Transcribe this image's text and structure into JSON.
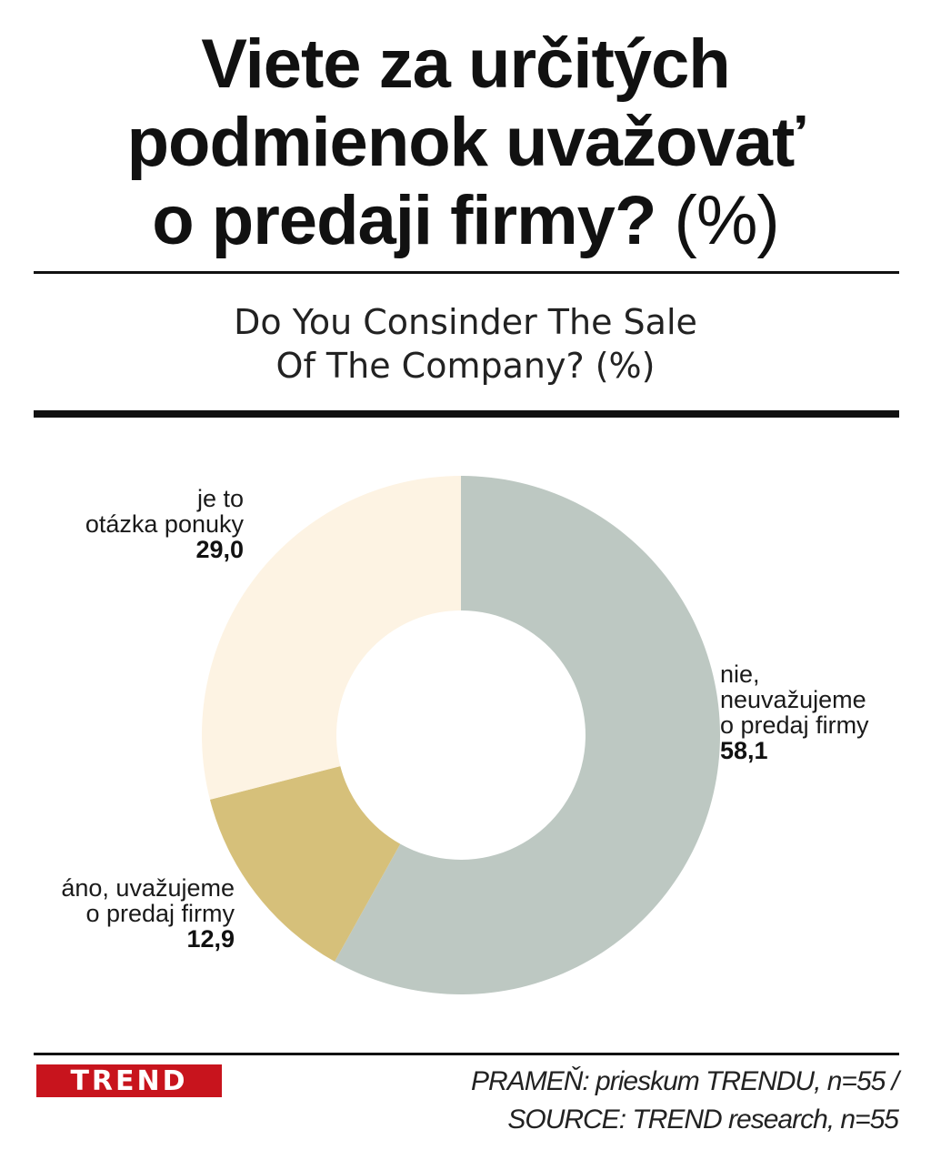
{
  "title": {
    "line1": "Viete za určitých",
    "line2": "podmienok uvažovať",
    "line3": "o predaji firmy?",
    "unit": "(%)"
  },
  "subtitle": {
    "line1": "Do You Consinder The Sale",
    "line2": "Of The Company? (%)"
  },
  "chart_data": {
    "type": "pie",
    "variant": "donut",
    "unit": "%",
    "slices": [
      {
        "label_lines": [
          "nie,",
          "neuvažujeme",
          "o predaj firmy"
        ],
        "value_label": "58,1",
        "value": 58.1,
        "color": "#bdc8c2"
      },
      {
        "label_lines": [
          "áno, uvažujeme",
          "o predaj firmy"
        ],
        "value_label": "12,9",
        "value": 12.9,
        "color": "#d6c07a"
      },
      {
        "label_lines": [
          "je to",
          "otázka ponuky"
        ],
        "value_label": "29,0",
        "value": 29.0,
        "color": "#fdf3e3"
      }
    ]
  },
  "footer": {
    "logo": "TREND",
    "source_line1": "PRAMEŇ: prieskum TRENDU, n=55 /",
    "source_line2": "SOURCE: TREND research, n=55"
  }
}
